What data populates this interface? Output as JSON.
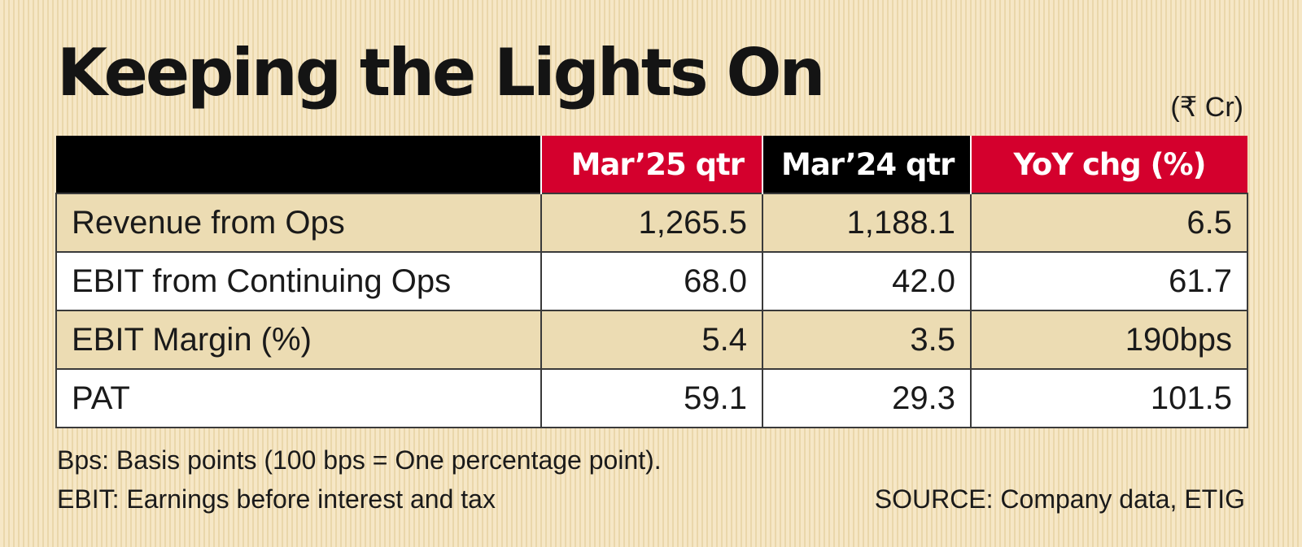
{
  "colors": {
    "accent_red": "#d4002d",
    "header_black": "#000000",
    "row_shade": "#ecdcb3",
    "row_plain": "#ffffff",
    "background": "#f4e3bd"
  },
  "chart_data": {
    "type": "table",
    "title": "Keeping the Lights On",
    "unit": "(₹ Cr)",
    "columns": [
      "Mar’25 qtr",
      "Mar’24 qtr",
      "YoY chg (%)"
    ],
    "rows": [
      {
        "label": "Revenue from Ops",
        "values": [
          "1,265.5",
          "1,188.1",
          "6.5"
        ]
      },
      {
        "label": "EBIT from Continuing Ops",
        "values": [
          "68.0",
          "42.0",
          "61.7"
        ]
      },
      {
        "label": "EBIT Margin (%)",
        "values": [
          "5.4",
          "3.5",
          "190bps"
        ]
      },
      {
        "label": "PAT",
        "values": [
          "59.1",
          "29.3",
          "101.5"
        ]
      }
    ],
    "notes": [
      "Bps: Basis points (100 bps = One percentage point).",
      "EBIT: Earnings before interest and tax"
    ],
    "source": "SOURCE: Company data, ETIG"
  }
}
